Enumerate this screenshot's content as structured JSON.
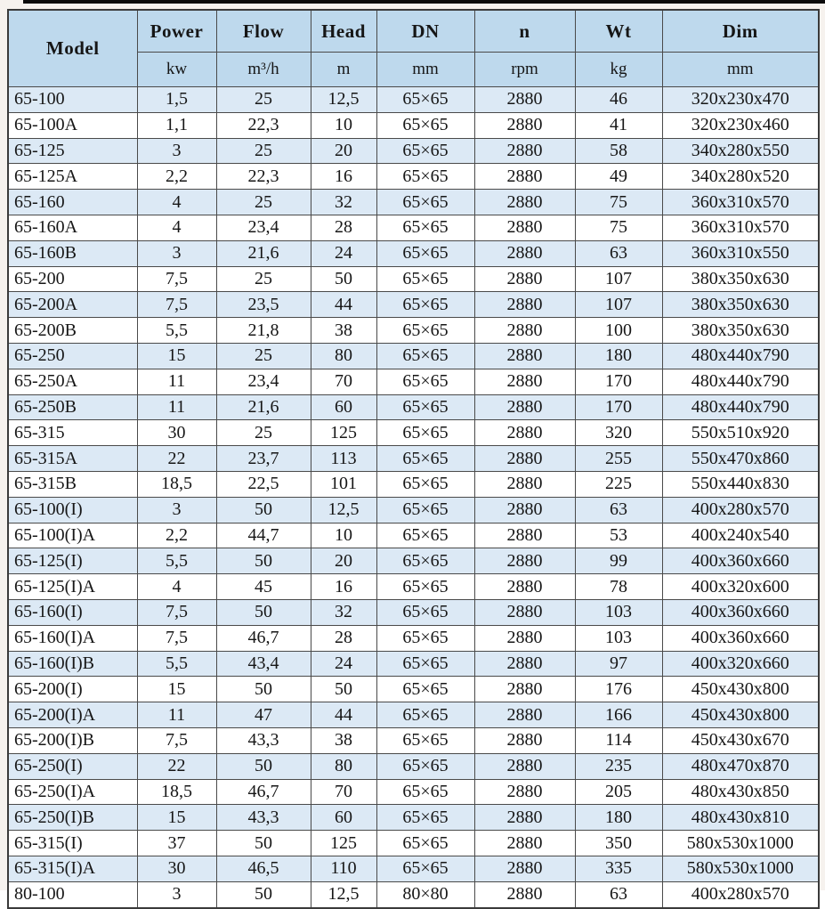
{
  "page": {
    "background": "#f6f2ee",
    "top_rule_color": "#0b0b0b"
  },
  "colors": {
    "header_bg": "#bed9ed",
    "row_alt_bg": "#dce9f5",
    "row_bg": "#ffffff",
    "border": "#4a4a4a",
    "text": "#161616"
  },
  "table": {
    "columns": [
      {
        "key": "model",
        "label": "Model",
        "unit": ""
      },
      {
        "key": "power",
        "label": "Power",
        "unit": "kw"
      },
      {
        "key": "flow",
        "label": "Flow",
        "unit": "m³/h"
      },
      {
        "key": "head",
        "label": "Head",
        "unit": "m"
      },
      {
        "key": "dn",
        "label": "DN",
        "unit": "mm"
      },
      {
        "key": "n",
        "label": "n",
        "unit": "rpm"
      },
      {
        "key": "wt",
        "label": "Wt",
        "unit": "kg"
      },
      {
        "key": "dim",
        "label": "Dim",
        "unit": "mm"
      }
    ],
    "rows": [
      [
        "65-100",
        "1,5",
        "25",
        "12,5",
        "65×65",
        "2880",
        "46",
        "320x230x470"
      ],
      [
        "65-100A",
        "1,1",
        "22,3",
        "10",
        "65×65",
        "2880",
        "41",
        "320x230x460"
      ],
      [
        "65-125",
        "3",
        "25",
        "20",
        "65×65",
        "2880",
        "58",
        "340x280x550"
      ],
      [
        "65-125A",
        "2,2",
        "22,3",
        "16",
        "65×65",
        "2880",
        "49",
        "340x280x520"
      ],
      [
        "65-160",
        "4",
        "25",
        "32",
        "65×65",
        "2880",
        "75",
        "360x310x570"
      ],
      [
        "65-160A",
        "4",
        "23,4",
        "28",
        "65×65",
        "2880",
        "75",
        "360x310x570"
      ],
      [
        "65-160B",
        "3",
        "21,6",
        "24",
        "65×65",
        "2880",
        "63",
        "360x310x550"
      ],
      [
        "65-200",
        "7,5",
        "25",
        "50",
        "65×65",
        "2880",
        "107",
        "380x350x630"
      ],
      [
        "65-200A",
        "7,5",
        "23,5",
        "44",
        "65×65",
        "2880",
        "107",
        "380x350x630"
      ],
      [
        "65-200B",
        "5,5",
        "21,8",
        "38",
        "65×65",
        "2880",
        "100",
        "380x350x630"
      ],
      [
        "65-250",
        "15",
        "25",
        "80",
        "65×65",
        "2880",
        "180",
        "480x440x790"
      ],
      [
        "65-250A",
        "11",
        "23,4",
        "70",
        "65×65",
        "2880",
        "170",
        "480x440x790"
      ],
      [
        "65-250B",
        "11",
        "21,6",
        "60",
        "65×65",
        "2880",
        "170",
        "480x440x790"
      ],
      [
        "65-315",
        "30",
        "25",
        "125",
        "65×65",
        "2880",
        "320",
        "550x510x920"
      ],
      [
        "65-315A",
        "22",
        "23,7",
        "113",
        "65×65",
        "2880",
        "255",
        "550x470x860"
      ],
      [
        "65-315B",
        "18,5",
        "22,5",
        "101",
        "65×65",
        "2880",
        "225",
        "550x440x830"
      ],
      [
        "65-100(I)",
        "3",
        "50",
        "12,5",
        "65×65",
        "2880",
        "63",
        "400x280x570"
      ],
      [
        "65-100(I)A",
        "2,2",
        "44,7",
        "10",
        "65×65",
        "2880",
        "53",
        "400x240x540"
      ],
      [
        "65-125(I)",
        "5,5",
        "50",
        "20",
        "65×65",
        "2880",
        "99",
        "400x360x660"
      ],
      [
        "65-125(I)A",
        "4",
        "45",
        "16",
        "65×65",
        "2880",
        "78",
        "400x320x600"
      ],
      [
        "65-160(I)",
        "7,5",
        "50",
        "32",
        "65×65",
        "2880",
        "103",
        "400x360x660"
      ],
      [
        "65-160(I)A",
        "7,5",
        "46,7",
        "28",
        "65×65",
        "2880",
        "103",
        "400x360x660"
      ],
      [
        "65-160(I)B",
        "5,5",
        "43,4",
        "24",
        "65×65",
        "2880",
        "97",
        "400x320x660"
      ],
      [
        "65-200(I)",
        "15",
        "50",
        "50",
        "65×65",
        "2880",
        "176",
        "450x430x800"
      ],
      [
        "65-200(I)A",
        "11",
        "47",
        "44",
        "65×65",
        "2880",
        "166",
        "450x430x800"
      ],
      [
        "65-200(I)B",
        "7,5",
        "43,3",
        "38",
        "65×65",
        "2880",
        "114",
        "450x430x670"
      ],
      [
        "65-250(I)",
        "22",
        "50",
        "80",
        "65×65",
        "2880",
        "235",
        "480x470x870"
      ],
      [
        "65-250(I)A",
        "18,5",
        "46,7",
        "70",
        "65×65",
        "2880",
        "205",
        "480x430x850"
      ],
      [
        "65-250(I)B",
        "15",
        "43,3",
        "60",
        "65×65",
        "2880",
        "180",
        "480x430x810"
      ],
      [
        "65-315(I)",
        "37",
        "50",
        "125",
        "65×65",
        "2880",
        "350",
        "580x530x1000"
      ],
      [
        "65-315(I)A",
        "30",
        "46,5",
        "110",
        "65×65",
        "2880",
        "335",
        "580x530x1000"
      ],
      [
        "80-100",
        "3",
        "50",
        "12,5",
        "80×80",
        "2880",
        "63",
        "400x280x570"
      ]
    ]
  }
}
